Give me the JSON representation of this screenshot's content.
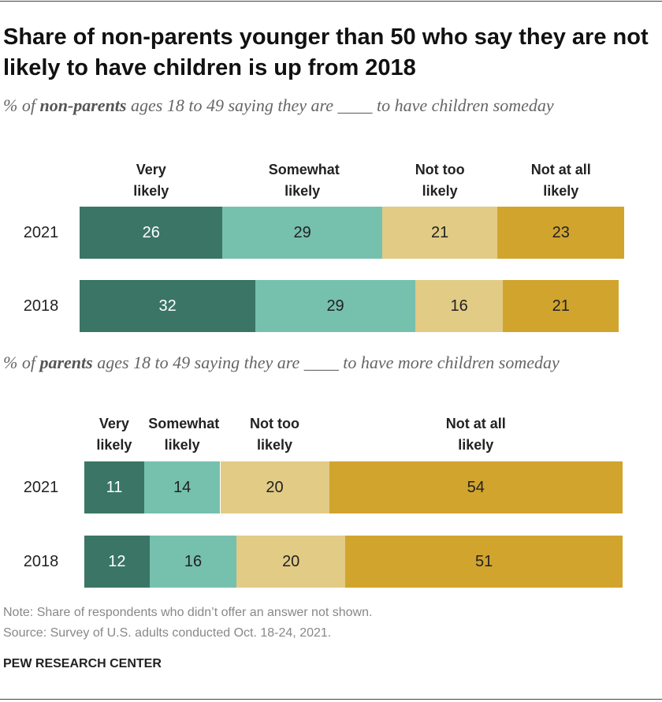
{
  "title": "Share of non-parents younger than 50 who say they are not likely to have children is up from 2018",
  "note": "Note: Share of respondents who didn’t offer an answer not shown.",
  "source": "Source: Survey of U.S. adults conducted Oct. 18-24, 2021.",
  "credit": "PEW RESEARCH CENTER",
  "chart_data": [
    {
      "type": "bar",
      "orientation": "horizontal",
      "stacked": true,
      "subtitle": {
        "before": "% of ",
        "bold": "non-parents",
        "after": " ages 18 to 49 saying they are ____ to have children someday"
      },
      "categories": [
        "2021",
        "2018"
      ],
      "xlim": [
        0,
        100
      ],
      "series": [
        {
          "name": "Very likely",
          "color": "#3a7565",
          "values": [
            26,
            32
          ]
        },
        {
          "name": "Somewhat likely",
          "color": "#76c0ae",
          "values": [
            29,
            29
          ]
        },
        {
          "name": "Not too likely",
          "color": "#e2cb85",
          "values": [
            21,
            16
          ]
        },
        {
          "name": "Not at all likely",
          "color": "#d1a42e",
          "values": [
            23,
            21
          ]
        }
      ]
    },
    {
      "type": "bar",
      "orientation": "horizontal",
      "stacked": true,
      "subtitle": {
        "before": "% of ",
        "bold": "parents",
        "after": " ages 18 to 49 saying they are ____ to have more children someday"
      },
      "categories": [
        "2021",
        "2018"
      ],
      "xlim": [
        0,
        100
      ],
      "series": [
        {
          "name": "Very likely",
          "color": "#3a7565",
          "values": [
            11,
            12
          ]
        },
        {
          "name": "Somewhat likely",
          "color": "#76c0ae",
          "values": [
            14,
            16
          ]
        },
        {
          "name": "Not too likely",
          "color": "#e2cb85",
          "values": [
            20,
            20
          ]
        },
        {
          "name": "Not at all likely",
          "color": "#d1a42e",
          "values": [
            54,
            51
          ]
        }
      ]
    }
  ]
}
